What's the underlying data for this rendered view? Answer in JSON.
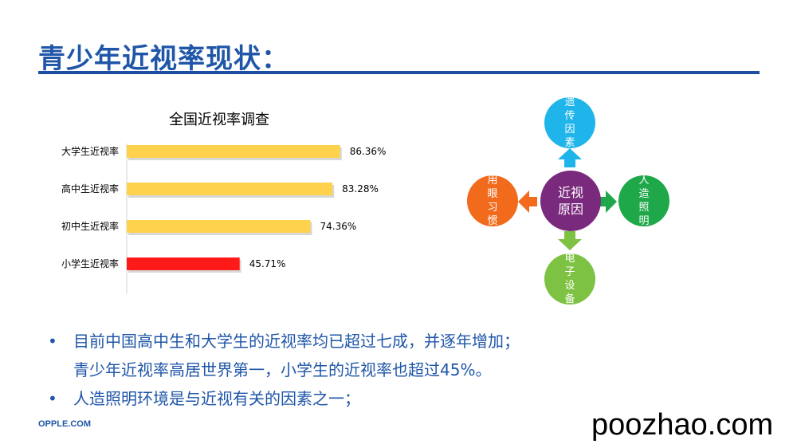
{
  "page": {
    "title": "青少年近视率现状：",
    "footer": "OPPLE.COM",
    "watermark": "poozhao.com"
  },
  "chart_data": {
    "type": "bar",
    "orientation": "horizontal",
    "title": "全国近视率调查",
    "categories": [
      "大学生近视率",
      "高中生近视率",
      "初中生近视率",
      "小学生近视率"
    ],
    "values": [
      86.36,
      83.28,
      74.36,
      45.71
    ],
    "value_labels": [
      "86.36%",
      "83.28%",
      "74.36%",
      "45.71%"
    ],
    "colors": [
      "#ffd24d",
      "#ffd24d",
      "#ffd24d",
      "#ff1a1a"
    ],
    "xlim": [
      0,
      100
    ],
    "grid": false,
    "legend": "none"
  },
  "diagram": {
    "center": "近视原因",
    "center_lines": [
      "近视",
      "原因"
    ],
    "top": "遗传因素",
    "left": "用眼习惯",
    "right": "人造照明",
    "bottom": "电子设备",
    "colors": {
      "center": "#7a2a7d",
      "top": "#1fb5ea",
      "left": "#f26b1d",
      "right": "#1fa84a",
      "bottom": "#7dc242",
      "arrow_top": "#1fb5ea",
      "arrow_left": "#f26b1d",
      "arrow_right": "#1fa84a",
      "arrow_bottom": "#7dc242"
    }
  },
  "bullets": [
    {
      "marker": "•",
      "text": "目前中国高中生和大学生的近视率均已超过七成，并逐年增加；"
    },
    {
      "marker": "",
      "text": "青少年近视率高居世界第一，小学生的近视率也超过45%。"
    },
    {
      "marker": "•",
      "text": "人造照明环境是与近视有关的因素之一；"
    }
  ]
}
